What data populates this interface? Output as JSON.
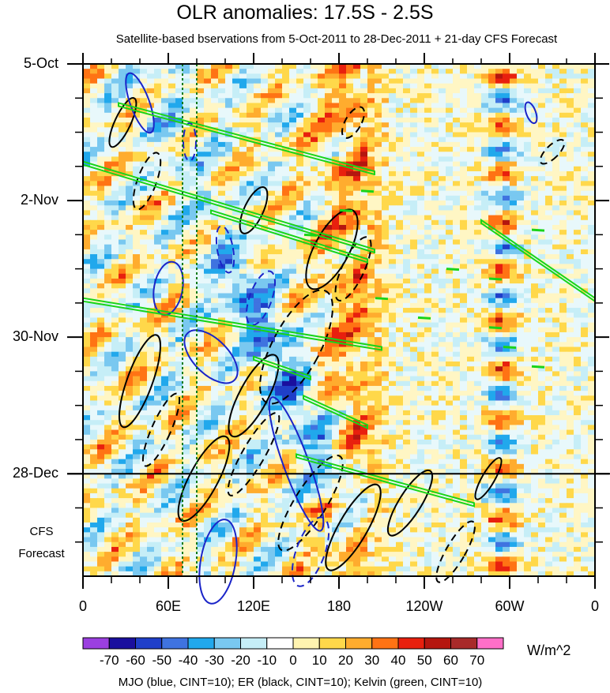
{
  "chart_data": {
    "type": "heatmap",
    "title": "OLR anomalies: 17.5S - 2.5S",
    "subtitle": "Satellite-based bservations from 5-Oct-2011 to 28-Dec-2011 + 21-day CFS Forecast",
    "x_ticks": [
      "0",
      "60E",
      "120E",
      "180",
      "120W",
      "60W",
      "0"
    ],
    "x_tick_lon": [
      0,
      60,
      120,
      180,
      240,
      300,
      360
    ],
    "y_ticks": [
      "5-Oct",
      "2-Nov",
      "30-Nov",
      "28-Dec"
    ],
    "y_tick_day": [
      0,
      28,
      56,
      84
    ],
    "forecast_label": [
      "CFS",
      "Forecast"
    ],
    "colorbar": {
      "labels": [
        "-70",
        "-60",
        "-50",
        "-40",
        "-30",
        "-20",
        "-10",
        "0",
        "10",
        "20",
        "30",
        "40",
        "50",
        "60",
        "70"
      ],
      "colors": [
        "#9b3fe0",
        "#1a0f9e",
        "#1f3fc9",
        "#3f73e0",
        "#21a8ec",
        "#79c8f0",
        "#c6eef7",
        "#ffffff",
        "#fff4b0",
        "#ffd84a",
        "#ffac2e",
        "#ff7314",
        "#e8200e",
        "#b5160f",
        "#a82a2a",
        "#ff6fc8"
      ],
      "units": "W/m^2"
    },
    "footer": "MJO (blue, CINT=10); ER (black, CINT=10); Kelvin (green, CINT=10)",
    "series_colors": {
      "mjo": "#1a24c8",
      "er": "#000000",
      "kelvin": "#19d419",
      "marker_lines": "#0f7a1a"
    },
    "time_range_days": [
      0,
      105
    ],
    "observed_end_day": 84,
    "reference_lon": [
      70,
      80
    ]
  }
}
